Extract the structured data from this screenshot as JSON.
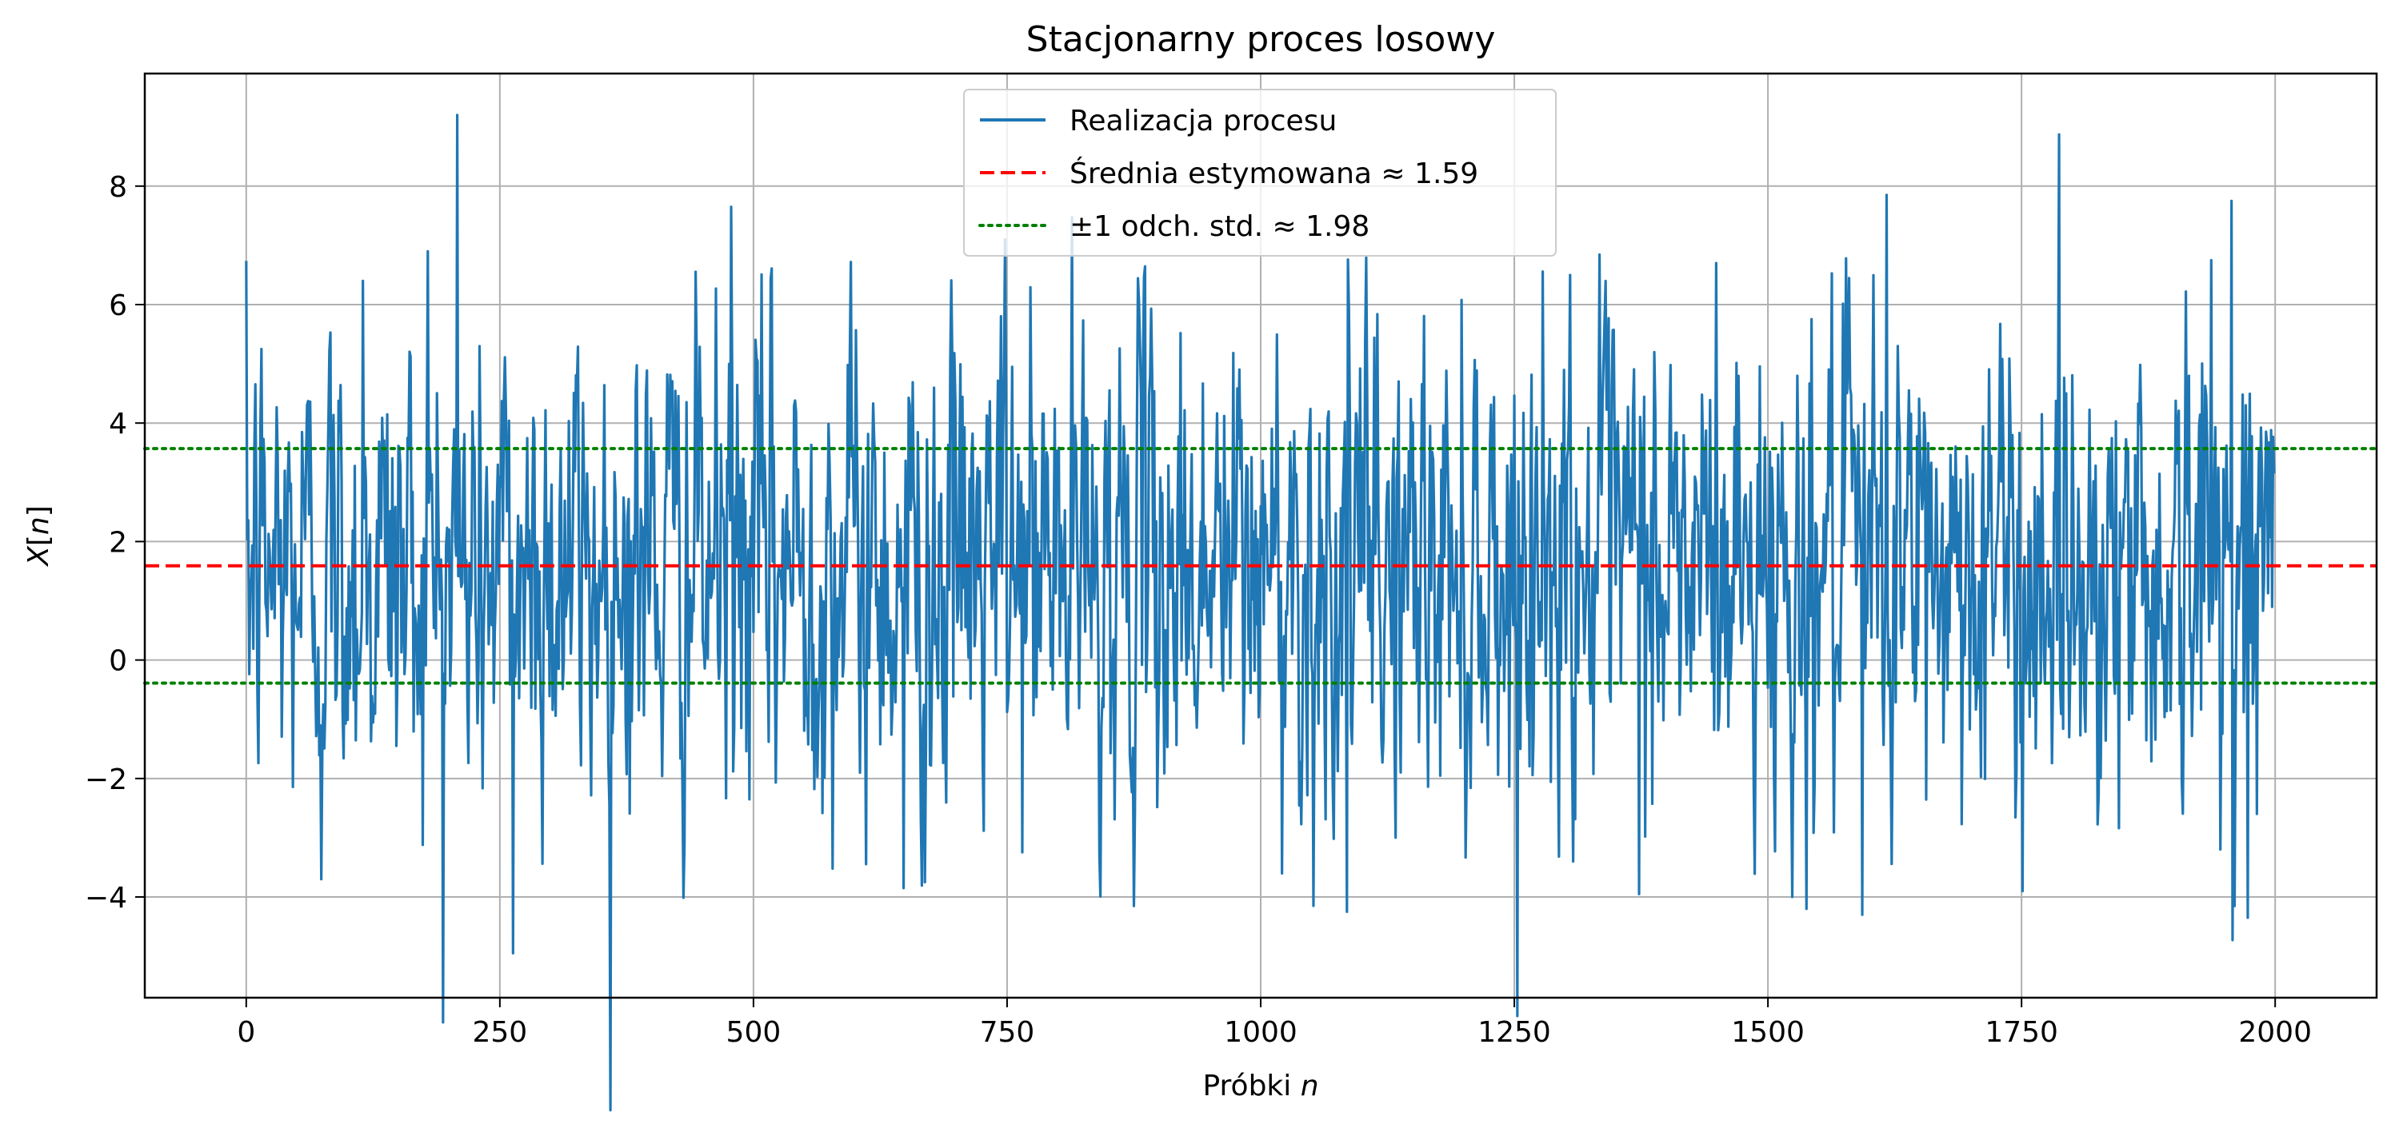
{
  "chart_data": {
    "type": "line",
    "title": "Stacjonarny proces losowy",
    "xlabel": {
      "main": "Próbki ",
      "italic": "n"
    },
    "ylabel": {
      "prefix": "X[",
      "italic": "n",
      "suffix": "]"
    },
    "xlim": [
      -100,
      2100
    ],
    "ylim": [
      -5.7,
      9.9
    ],
    "xticks": [
      0,
      250,
      500,
      750,
      1000,
      1250,
      1500,
      1750,
      2000
    ],
    "xtick_labels": [
      "0",
      "250",
      "500",
      "750",
      "1000",
      "1250",
      "1500",
      "1750",
      "2000"
    ],
    "yticks": [
      -4,
      -2,
      0,
      2,
      4,
      6,
      8
    ],
    "ytick_labels": [
      "−4",
      "−2",
      "0",
      "2",
      "4",
      "6",
      "8"
    ],
    "grid": true,
    "legend_placement": "upper-center",
    "n_samples": 2000,
    "series": [
      {
        "name": "Realizacja procesu",
        "color": "#1f77b4",
        "style": "solid",
        "mean": 1.59,
        "std": 1.98,
        "peaks": [
          {
            "x": 208,
            "y": 9.2
          },
          {
            "x": 263,
            "y": -4.95
          },
          {
            "x": 478,
            "y": 7.65
          },
          {
            "x": 748,
            "y": 7.1
          },
          {
            "x": 1617,
            "y": 7.85
          },
          {
            "x": 1957,
            "y": 7.75
          },
          {
            "x": 1973,
            "y": -4.35
          },
          {
            "x": 1593,
            "y": -4.3
          },
          {
            "x": 1085,
            "y": -4.25
          },
          {
            "x": 1538,
            "y": -4.2
          },
          {
            "x": 1052,
            "y": -4.15
          },
          {
            "x": 1373,
            "y": -3.95
          },
          {
            "x": 1751,
            "y": -3.9
          },
          {
            "x": 648,
            "y": -3.85
          },
          {
            "x": 669,
            "y": -3.75
          },
          {
            "x": 74,
            "y": -3.7
          },
          {
            "x": 179,
            "y": 6.9
          },
          {
            "x": 1449,
            "y": 6.7
          },
          {
            "x": 1937,
            "y": 6.75
          },
          {
            "x": 115,
            "y": 6.4
          },
          {
            "x": 1305,
            "y": 6.5
          }
        ]
      },
      {
        "name": "Średnia estymowana ≈ 1.59",
        "color": "#ff0000",
        "style": "dashed",
        "y": 1.59
      },
      {
        "name": "±1 odch. std. ≈ 1.98",
        "color": "#008000",
        "style": "dotted",
        "y_values": [
          3.57,
          -0.39
        ]
      }
    ]
  }
}
